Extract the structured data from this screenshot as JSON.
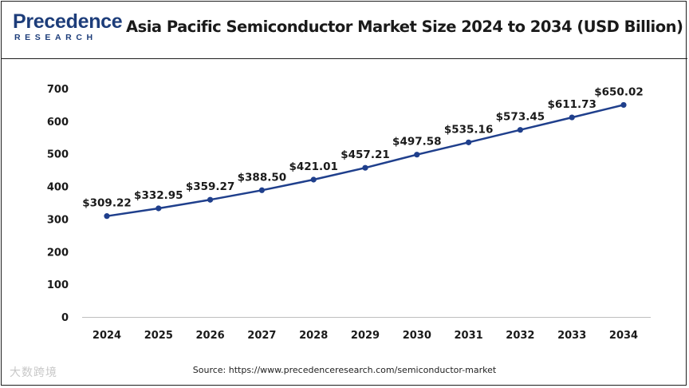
{
  "header": {
    "title": "Asia Pacific Semiconductor Market Size 2024 to 2034 (USD Billion)",
    "logo_main": "Precedence",
    "logo_sub": "RESEARCH"
  },
  "footer": {
    "source": "Source: https://www.precedenceresearch.com/semiconductor-market",
    "watermark": "大数跨境"
  },
  "colors": {
    "series": "#1f3f8c",
    "brand": "#1d3d7a"
  },
  "chart_data": {
    "type": "line",
    "title": "Asia Pacific Semiconductor Market Size 2024 to 2034 (USD Billion)",
    "categories": [
      "2024",
      "2025",
      "2026",
      "2027",
      "2028",
      "2029",
      "2030",
      "2031",
      "2032",
      "2033",
      "2034"
    ],
    "values": [
      309.22,
      332.95,
      359.27,
      388.5,
      421.01,
      457.21,
      497.58,
      535.16,
      573.45,
      611.73,
      650.02
    ],
    "data_labels": [
      "$309.22",
      "$332.95",
      "$359.27",
      "$388.50",
      "$421.01",
      "$457.21",
      "$497.58",
      "$535.16",
      "$573.45",
      "$611.73",
      "$650.02"
    ],
    "y_ticks": [
      0,
      100,
      200,
      300,
      400,
      500,
      600,
      700
    ],
    "ylim": [
      0,
      700
    ],
    "grid": false,
    "legend": "none"
  }
}
